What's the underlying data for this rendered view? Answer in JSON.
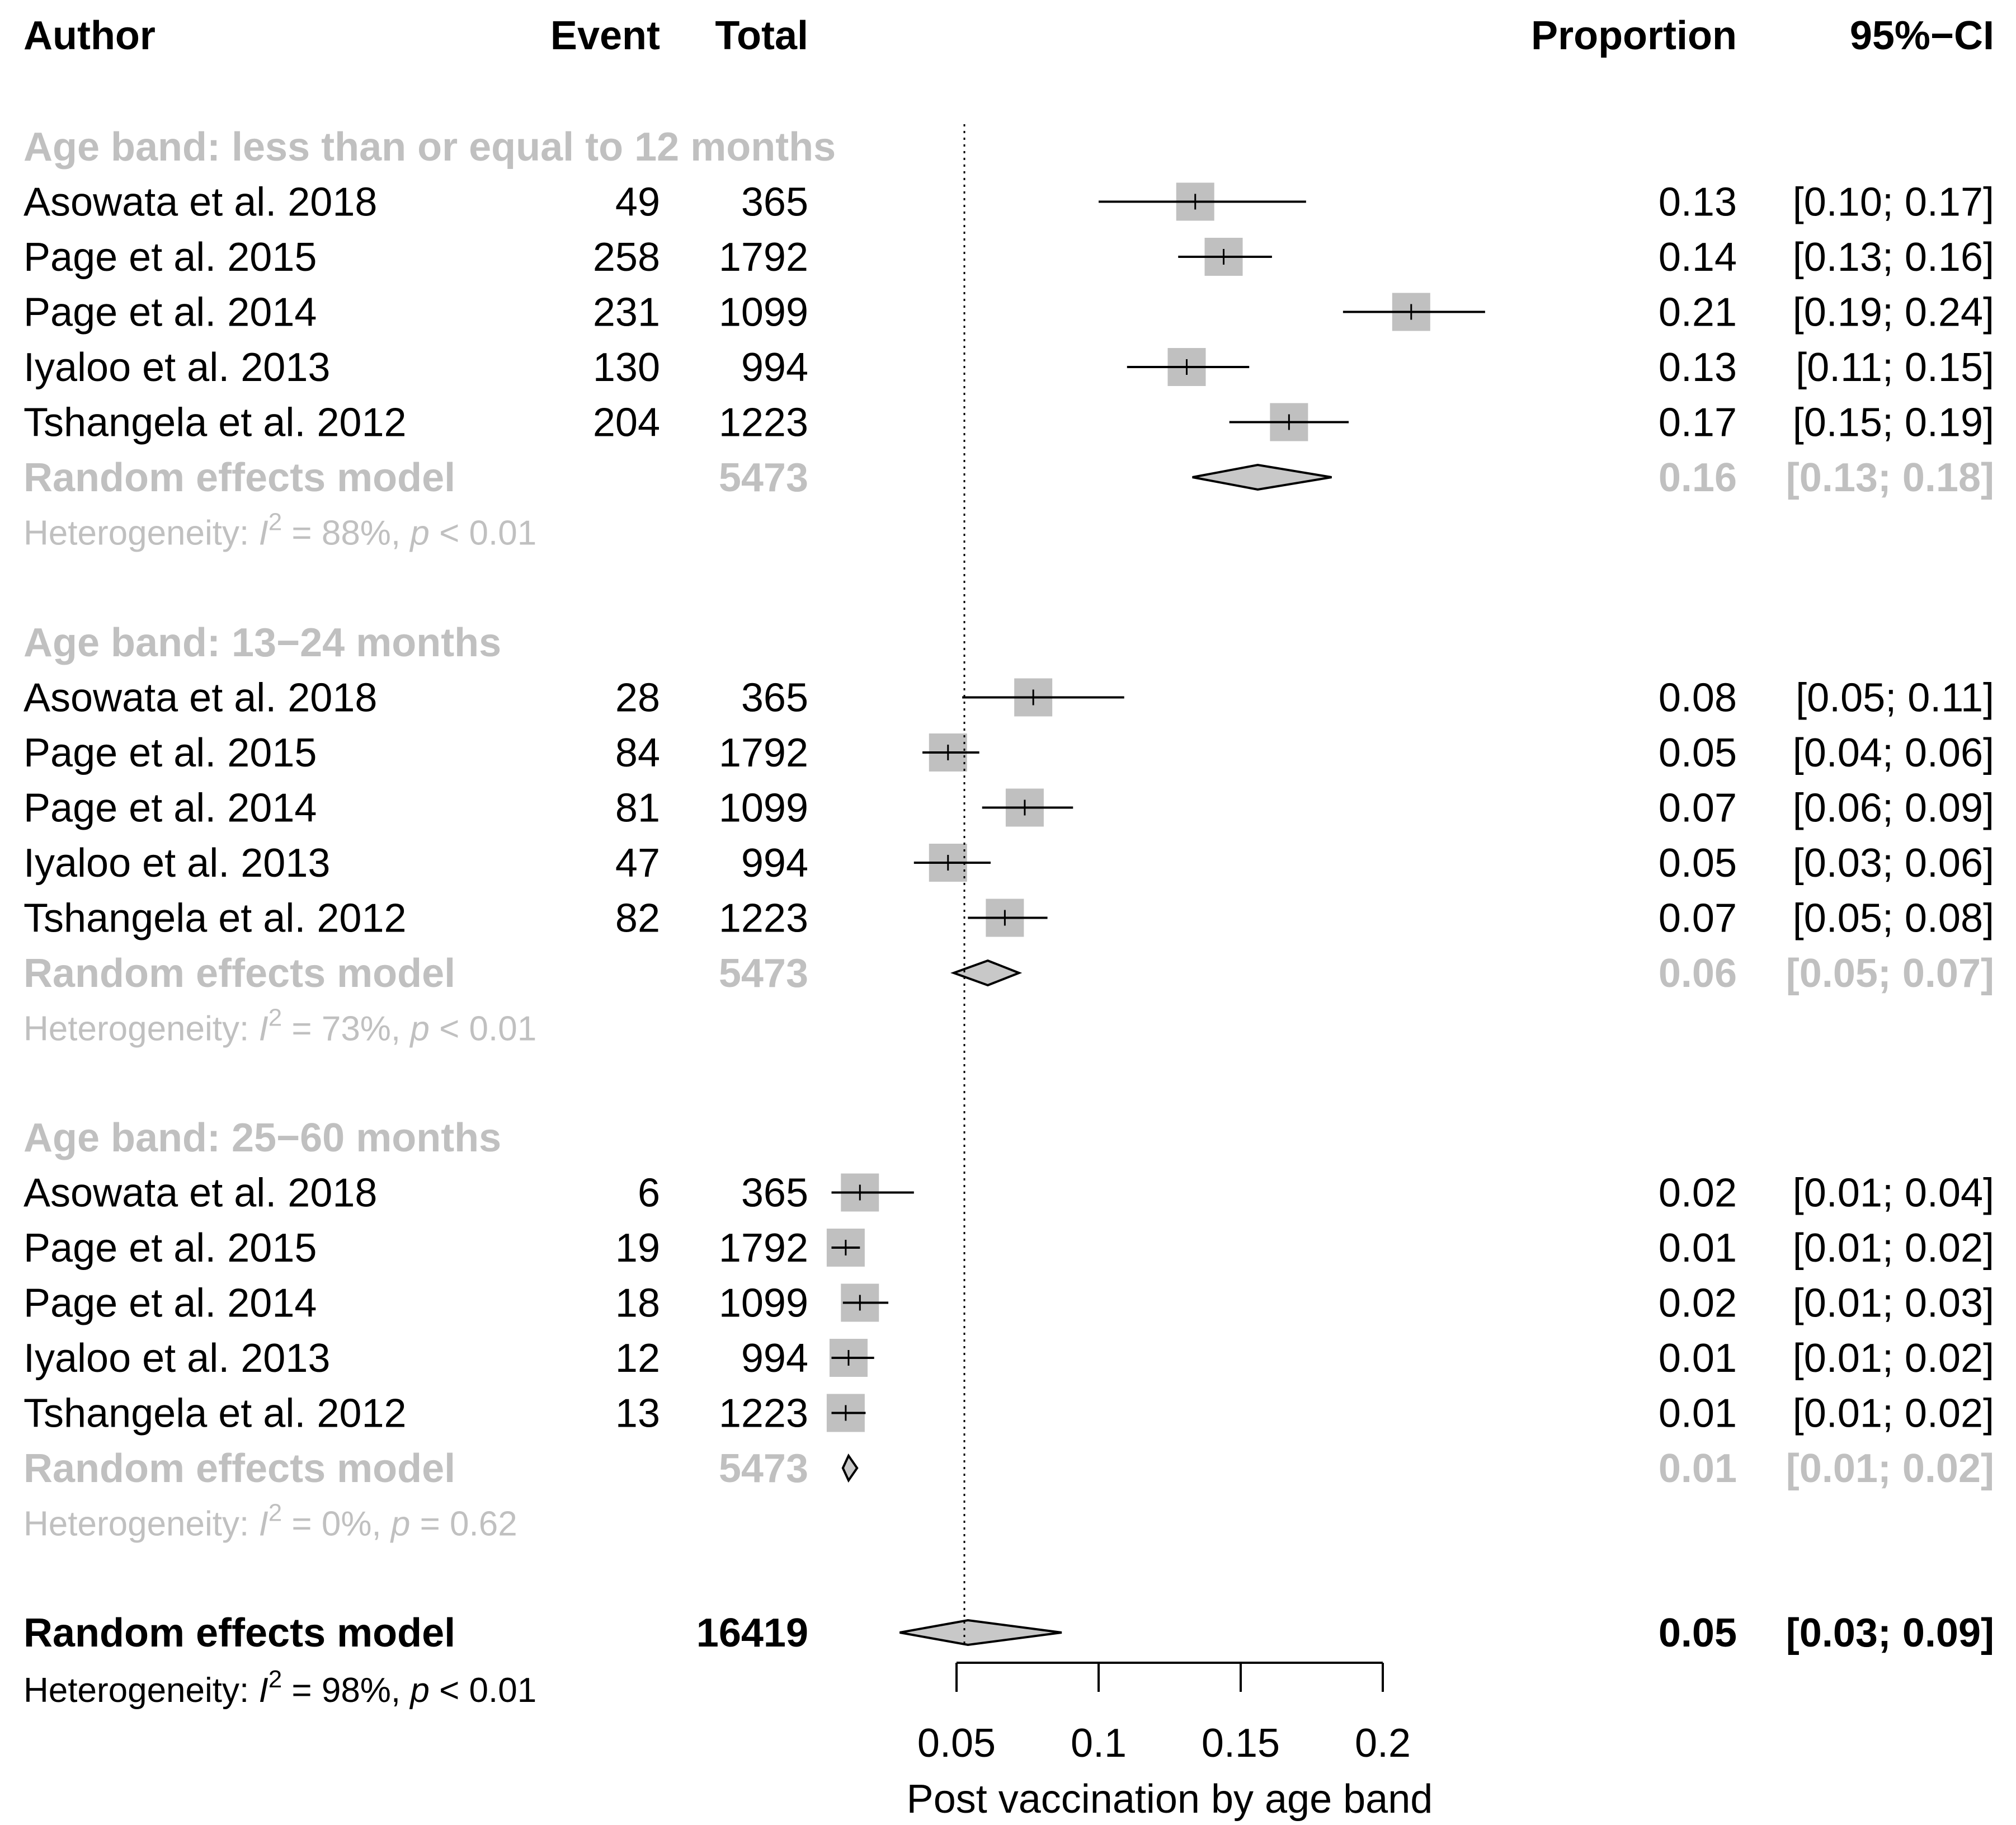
{
  "chart_data": {
    "type": "forest",
    "headers": {
      "author": "Author",
      "event": "Event",
      "total": "Total",
      "proportion": "Proportion",
      "ci": "95%−CI"
    },
    "xlabel": "Post vaccination by age band",
    "xticks": [
      "0.05",
      "0.1",
      "0.15",
      "0.2"
    ],
    "xlim": [
      0.05,
      0.2
    ],
    "reference_line": 0.05,
    "groups": [
      {
        "label": "Age band: less than or equal to 12 months",
        "studies": [
          {
            "author": "Asowata et al. 2018",
            "event": "49",
            "total": "365",
            "prop": 0.134,
            "lo": 0.1,
            "hi": 0.173,
            "text_prop": "0.13",
            "text_ci": "[0.10; 0.17]"
          },
          {
            "author": "Page et al. 2015",
            "event": "258",
            "total": "1792",
            "prop": 0.144,
            "lo": 0.128,
            "hi": 0.161,
            "text_prop": "0.14",
            "text_ci": "[0.13; 0.16]"
          },
          {
            "author": "Page et al. 2014",
            "event": "231",
            "total": "1099",
            "prop": 0.21,
            "lo": 0.186,
            "hi": 0.236,
            "text_prop": "0.21",
            "text_ci": "[0.19; 0.24]"
          },
          {
            "author": "Iyaloo et al. 2013",
            "event": "130",
            "total": "994",
            "prop": 0.131,
            "lo": 0.11,
            "hi": 0.153,
            "text_prop": "0.13",
            "text_ci": "[0.11; 0.15]"
          },
          {
            "author": "Tshangela et al. 2012",
            "event": "204",
            "total": "1223",
            "prop": 0.167,
            "lo": 0.146,
            "hi": 0.188,
            "text_prop": "0.17",
            "text_ci": "[0.15; 0.19]"
          }
        ],
        "summary": {
          "label": "Random effects model",
          "total": "5473",
          "prop": 0.156,
          "lo": 0.133,
          "hi": 0.182,
          "text_prop": "0.16",
          "text_ci": "[0.13; 0.18]"
        },
        "heterogeneity": {
          "prefix": "Heterogeneity: ",
          "i2": "I",
          "sup": "2",
          "value": " = 88%, ",
          "p": "p",
          "pval": " < 0.01"
        }
      },
      {
        "label": "Age band: 13−24 months",
        "studies": [
          {
            "author": "Asowata et al. 2018",
            "event": "28",
            "total": "365",
            "prop": 0.077,
            "lo": 0.052,
            "hi": 0.109,
            "text_prop": "0.08",
            "text_ci": "[0.05; 0.11]"
          },
          {
            "author": "Page et al. 2015",
            "event": "84",
            "total": "1792",
            "prop": 0.047,
            "lo": 0.038,
            "hi": 0.058,
            "text_prop": "0.05",
            "text_ci": "[0.04; 0.06]"
          },
          {
            "author": "Page et al. 2014",
            "event": "81",
            "total": "1099",
            "prop": 0.074,
            "lo": 0.059,
            "hi": 0.091,
            "text_prop": "0.07",
            "text_ci": "[0.06; 0.09]"
          },
          {
            "author": "Iyaloo et al. 2013",
            "event": "47",
            "total": "994",
            "prop": 0.047,
            "lo": 0.035,
            "hi": 0.062,
            "text_prop": "0.05",
            "text_ci": "[0.03; 0.06]"
          },
          {
            "author": "Tshangela et al. 2012",
            "event": "82",
            "total": "1223",
            "prop": 0.067,
            "lo": 0.054,
            "hi": 0.082,
            "text_prop": "0.07",
            "text_ci": "[0.05; 0.08]"
          }
        ],
        "summary": {
          "label": "Random effects model",
          "total": "5473",
          "prop": 0.061,
          "lo": 0.049,
          "hi": 0.072,
          "text_prop": "0.06",
          "text_ci": "[0.05; 0.07]"
        },
        "heterogeneity": {
          "prefix": "Heterogeneity: ",
          "i2": "I",
          "sup": "2",
          "value": " = 73%, ",
          "p": "p",
          "pval": " < 0.01"
        }
      },
      {
        "label": "Age band: 25−60 months",
        "studies": [
          {
            "author": "Asowata et al. 2018",
            "event": "6",
            "total": "365",
            "prop": 0.016,
            "lo": 0.006,
            "hi": 0.035,
            "text_prop": "0.02",
            "text_ci": "[0.01; 0.04]"
          },
          {
            "author": "Page et al. 2015",
            "event": "19",
            "total": "1792",
            "prop": 0.011,
            "lo": 0.006,
            "hi": 0.016,
            "text_prop": "0.01",
            "text_ci": "[0.01; 0.02]"
          },
          {
            "author": "Page et al. 2014",
            "event": "18",
            "total": "1099",
            "prop": 0.016,
            "lo": 0.01,
            "hi": 0.026,
            "text_prop": "0.02",
            "text_ci": "[0.01; 0.03]"
          },
          {
            "author": "Iyaloo et al. 2013",
            "event": "12",
            "total": "994",
            "prop": 0.012,
            "lo": 0.006,
            "hi": 0.021,
            "text_prop": "0.01",
            "text_ci": "[0.01; 0.02]"
          },
          {
            "author": "Tshangela et al. 2012",
            "event": "13",
            "total": "1223",
            "prop": 0.011,
            "lo": 0.006,
            "hi": 0.018,
            "text_prop": "0.01",
            "text_ci": "[0.01; 0.02]"
          }
        ],
        "summary": {
          "label": "Random effects model",
          "total": "5473",
          "prop": 0.012,
          "lo": 0.01,
          "hi": 0.015,
          "text_prop": "0.01",
          "text_ci": "[0.01; 0.02]"
        },
        "heterogeneity": {
          "prefix": "Heterogeneity: ",
          "i2": "I",
          "sup": "2",
          "value": " = 0%, ",
          "p": "p",
          "pval": " = 0.62"
        }
      }
    ],
    "overall": {
      "label": "Random effects model",
      "total": "16419",
      "prop": 0.054,
      "lo": 0.03,
      "hi": 0.087,
      "text_prop": "0.05",
      "text_ci": "[0.03; 0.09]",
      "heterogeneity": {
        "prefix": "Heterogeneity: ",
        "i2": "I",
        "sup": "2",
        "value": " = 98%, ",
        "p": "p",
        "pval": " < 0.01"
      }
    }
  }
}
